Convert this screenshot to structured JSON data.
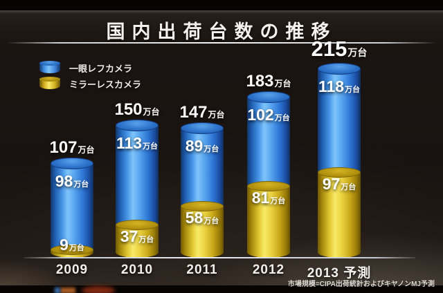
{
  "title": "国内出荷台数の推移",
  "legend": [
    {
      "label": "一眼レフカメラ",
      "color": "#4a97e8"
    },
    {
      "label": "ミラーレスカメラ",
      "color": "#e2c832"
    }
  ],
  "footnote": "市場規模=CIPA出荷統計およびキヤノンMJ予測",
  "colors": {
    "slr_blue": "#4a97e8",
    "mirrorless_yellow": "#e8cf38",
    "background": "#181310",
    "text": "#ffffff"
  },
  "chart_data": {
    "type": "bar",
    "stacked": true,
    "title": "国内出荷台数の推移",
    "unit": "万台",
    "categories": [
      "2009",
      "2010",
      "2011",
      "2012",
      "2013 予測"
    ],
    "series": [
      {
        "name": "一眼レフカメラ",
        "key": "slr",
        "color": "blue",
        "values": [
          98,
          113,
          89,
          102,
          118
        ]
      },
      {
        "name": "ミラーレスカメラ",
        "key": "mirrorless",
        "color": "yellow",
        "values": [
          9,
          37,
          58,
          81,
          97
        ]
      }
    ],
    "totals": [
      107,
      150,
      147,
      183,
      215
    ],
    "emphasized_total_index": 4,
    "xlabel": "",
    "ylabel": "",
    "legend_position": "top-left",
    "grid": false
  }
}
